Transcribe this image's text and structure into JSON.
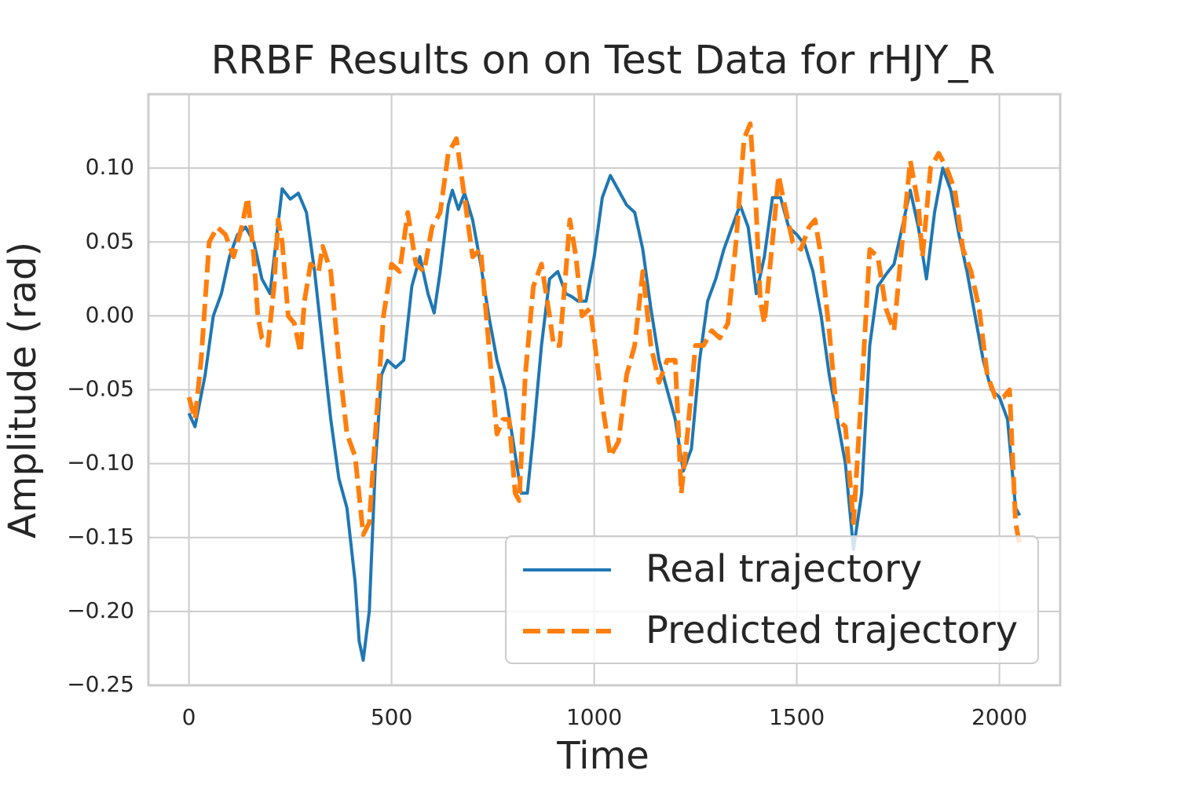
{
  "chart_data": {
    "type": "line",
    "title": "RRBF Results on on Test Data for rHJY_R",
    "x_label": "Time",
    "y_label": "Amplitude (rad)",
    "xlim": [
      -100,
      2150
    ],
    "ylim": [
      -0.25,
      0.15
    ],
    "xticks": [
      0,
      500,
      1000,
      1500,
      2000
    ],
    "yticks": [
      {
        "value": -0.25,
        "label": "−0.25"
      },
      {
        "value": -0.2,
        "label": "−0.20"
      },
      {
        "value": -0.15,
        "label": "−0.15"
      },
      {
        "value": -0.1,
        "label": "−0.10"
      },
      {
        "value": -0.05,
        "label": "−0.05"
      },
      {
        "value": 0,
        "label": "0.00"
      },
      0.05,
      {
        "value": 0.1,
        "label": "0.10"
      }
    ],
    "grid": true,
    "legend": "lower right",
    "series": [
      {
        "name": "Real trajectory",
        "color": "#1f77b4",
        "style": "solid",
        "x": [
          0,
          15,
          40,
          60,
          80,
          100,
          120,
          140,
          160,
          180,
          200,
          230,
          250,
          270,
          290,
          310,
          330,
          350,
          370,
          390,
          410,
          420,
          430,
          445,
          460,
          475,
          490,
          510,
          530,
          550,
          570,
          590,
          605,
          620,
          640,
          650,
          665,
          680,
          700,
          720,
          740,
          760,
          780,
          800,
          820,
          835,
          850,
          870,
          890,
          910,
          930,
          945,
          960,
          980,
          1000,
          1020,
          1040,
          1060,
          1080,
          1100,
          1120,
          1140,
          1160,
          1180,
          1200,
          1220,
          1240,
          1260,
          1280,
          1300,
          1320,
          1340,
          1360,
          1380,
          1400,
          1420,
          1440,
          1460,
          1480,
          1500,
          1520,
          1540,
          1560,
          1580,
          1600,
          1620,
          1640,
          1660,
          1680,
          1700,
          1720,
          1740,
          1760,
          1780,
          1800,
          1820,
          1840,
          1860,
          1880,
          1900,
          1920,
          1940,
          1960,
          1980,
          2000,
          2020,
          2040,
          2050
        ],
        "values": [
          -0.066,
          -0.075,
          -0.04,
          0.0,
          0.015,
          0.04,
          0.055,
          0.06,
          0.05,
          0.025,
          0.015,
          0.086,
          0.079,
          0.083,
          0.07,
          0.03,
          -0.02,
          -0.07,
          -0.11,
          -0.13,
          -0.18,
          -0.22,
          -0.233,
          -0.2,
          -0.1,
          -0.04,
          -0.03,
          -0.035,
          -0.03,
          0.02,
          0.04,
          0.015,
          0.002,
          0.03,
          0.075,
          0.085,
          0.072,
          0.083,
          0.065,
          0.035,
          0.0,
          -0.03,
          -0.05,
          -0.085,
          -0.12,
          -0.12,
          -0.08,
          -0.02,
          0.025,
          0.03,
          0.015,
          0.013,
          0.01,
          0.01,
          0.04,
          0.08,
          0.095,
          0.085,
          0.075,
          0.07,
          0.045,
          0.005,
          -0.03,
          -0.05,
          -0.07,
          -0.105,
          -0.09,
          -0.03,
          0.01,
          0.025,
          0.045,
          0.06,
          0.075,
          0.06,
          0.015,
          0.04,
          0.08,
          0.08,
          0.06,
          0.055,
          0.048,
          0.03,
          0.0,
          -0.04,
          -0.07,
          -0.1,
          -0.158,
          -0.12,
          -0.02,
          0.02,
          0.028,
          0.035,
          0.06,
          0.085,
          0.06,
          0.025,
          0.07,
          0.1,
          0.085,
          0.055,
          0.03,
          0.0,
          -0.03,
          -0.05,
          -0.055,
          -0.07,
          -0.13,
          -0.135
        ]
      },
      {
        "name": "Predicted trajectory",
        "color": "#ff7f0e",
        "style": "dashed",
        "x": [
          0,
          15,
          30,
          50,
          70,
          90,
          110,
          130,
          145,
          160,
          170,
          180,
          195,
          210,
          220,
          230,
          245,
          260,
          275,
          285,
          300,
          320,
          330,
          350,
          370,
          390,
          410,
          430,
          445,
          460,
          480,
          500,
          520,
          540,
          560,
          580,
          600,
          620,
          640,
          660,
          680,
          700,
          720,
          740,
          760,
          775,
          790,
          805,
          815,
          830,
          850,
          870,
          890,
          900,
          915,
          930,
          940,
          955,
          970,
          990,
          1000,
          1020,
          1040,
          1060,
          1080,
          1100,
          1120,
          1140,
          1160,
          1180,
          1200,
          1215,
          1230,
          1250,
          1270,
          1290,
          1310,
          1330,
          1350,
          1370,
          1385,
          1400,
          1410,
          1420,
          1440,
          1455,
          1470,
          1490,
          1510,
          1530,
          1545,
          1560,
          1580,
          1600,
          1620,
          1640,
          1660,
          1680,
          1700,
          1720,
          1740,
          1760,
          1780,
          1800,
          1810,
          1830,
          1850,
          1870,
          1890,
          1910,
          1930,
          1950,
          1970,
          1990,
          2010,
          2025,
          2040,
          2050
        ],
        "values": [
          -0.055,
          -0.07,
          -0.03,
          0.05,
          0.06,
          0.055,
          0.04,
          0.06,
          0.08,
          0.04,
          0.0,
          -0.015,
          -0.02,
          0.02,
          0.065,
          0.05,
          0.0,
          -0.005,
          -0.025,
          0.01,
          0.035,
          0.03,
          0.047,
          0.03,
          -0.03,
          -0.08,
          -0.095,
          -0.148,
          -0.14,
          -0.08,
          0.0,
          0.035,
          0.03,
          0.07,
          0.035,
          0.03,
          0.06,
          0.07,
          0.11,
          0.12,
          0.08,
          0.04,
          0.045,
          -0.02,
          -0.08,
          -0.07,
          -0.07,
          -0.12,
          -0.125,
          -0.04,
          0.02,
          0.035,
          0.0,
          -0.02,
          -0.02,
          0.03,
          0.065,
          0.04,
          0.0,
          0.005,
          -0.015,
          -0.06,
          -0.095,
          -0.085,
          -0.04,
          -0.02,
          0.03,
          -0.02,
          -0.045,
          -0.03,
          -0.03,
          -0.12,
          -0.08,
          -0.02,
          -0.02,
          -0.01,
          -0.015,
          -0.005,
          0.05,
          0.12,
          0.13,
          0.07,
          0.01,
          -0.005,
          0.05,
          0.095,
          0.075,
          0.05,
          0.045,
          0.06,
          0.065,
          0.04,
          -0.01,
          -0.07,
          -0.075,
          -0.14,
          -0.05,
          0.045,
          0.04,
          0.005,
          -0.01,
          0.05,
          0.105,
          0.075,
          0.04,
          0.1,
          0.11,
          0.1,
          0.085,
          0.045,
          0.03,
          0.005,
          -0.04,
          -0.055,
          -0.055,
          -0.05,
          -0.14,
          -0.155
        ]
      }
    ]
  }
}
